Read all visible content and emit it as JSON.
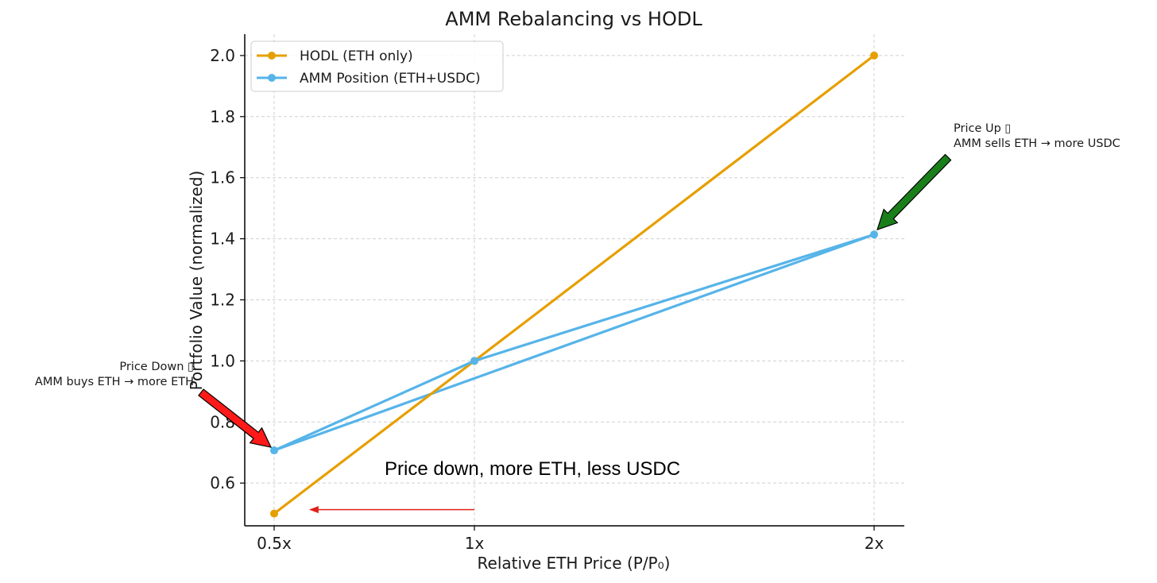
{
  "chart_data": {
    "type": "line",
    "title": "AMM Rebalancing vs HODL",
    "xlabel": "Relative ETH Price (P/P₀)",
    "ylabel": "Portfolio Value (normalized)",
    "x_categories": [
      "0.5x",
      "1x",
      "2x"
    ],
    "x_values": [
      0.5,
      1,
      2
    ],
    "ylim": [
      0.46,
      2.07
    ],
    "yticks": [
      "0.6",
      "0.8",
      "1.0",
      "1.2",
      "1.4",
      "1.6",
      "1.8",
      "2.0"
    ],
    "ytick_values": [
      0.6,
      0.8,
      1.0,
      1.2,
      1.4,
      1.6,
      1.8,
      2.0
    ],
    "grid": true,
    "legend_position": "top-left",
    "series": [
      {
        "name": "HODL (ETH only)",
        "color": "#E69F00",
        "x": [
          0.5,
          1,
          2
        ],
        "y": [
          0.5,
          1.0,
          2.0
        ]
      },
      {
        "name": "AMM Position (ETH+USDC)",
        "color": "#56B4E9",
        "x": [
          0.5,
          1,
          2
        ],
        "y": [
          0.707,
          1.0,
          1.414
        ]
      },
      {
        "name": "AMM Position (ETH+USDC) path",
        "color": "#56B4E9",
        "x": [
          0.5,
          2
        ],
        "y": [
          0.707,
          1.414
        ],
        "in_legend": false
      }
    ],
    "annotations": [
      {
        "name": "price-up",
        "lines": [
          "Price Up ▯",
          "AMM sells ETH → more USDC"
        ],
        "target": [
          2,
          1.414
        ],
        "arrow_color": "#1a7f1a"
      },
      {
        "name": "price-down",
        "lines": [
          "Price Down ▯",
          "AMM buys ETH → more ETH"
        ],
        "target": [
          0.5,
          0.707
        ],
        "arrow_color": "#ff1a1a"
      }
    ],
    "note": {
      "text": "Price down, more ETH, less USDC",
      "arrow_color": "#e0201a",
      "arrow_from_x": 1,
      "arrow_to_x": 0.59,
      "arrow_y": 0.513,
      "text_y": 0.59
    }
  }
}
